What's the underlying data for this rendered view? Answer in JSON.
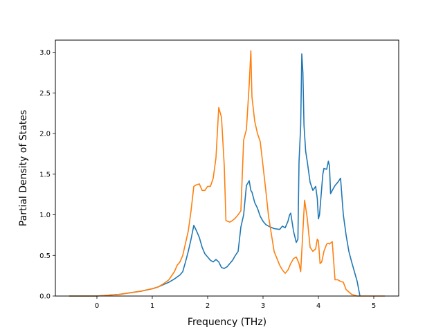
{
  "chart_data": {
    "type": "line",
    "title": "",
    "xlabel": "Frequency (THz)",
    "ylabel": "Partial Density of States",
    "xlim": [
      -0.75,
      5.45
    ],
    "ylim": [
      0,
      3.15
    ],
    "xticks": [
      0,
      1,
      2,
      3,
      4,
      5
    ],
    "xtick_labels": [
      "0",
      "1",
      "2",
      "3",
      "4",
      "5"
    ],
    "yticks": [
      0.0,
      0.5,
      1.0,
      1.5,
      2.0,
      2.5,
      3.0
    ],
    "ytick_labels": [
      "0.0",
      "0.5",
      "1.0",
      "1.5",
      "2.0",
      "2.5",
      "3.0"
    ],
    "grid": false,
    "legend": "none",
    "series": [
      {
        "color": "#1f77b4",
        "x": [
          -0.5,
          -0.2,
          0.0,
          0.2,
          0.4,
          0.6,
          0.8,
          1.0,
          1.1,
          1.2,
          1.3,
          1.4,
          1.5,
          1.55,
          1.6,
          1.65,
          1.7,
          1.75,
          1.8,
          1.85,
          1.9,
          1.95,
          2.0,
          2.05,
          2.1,
          2.15,
          2.2,
          2.25,
          2.3,
          2.35,
          2.4,
          2.45,
          2.5,
          2.55,
          2.6,
          2.65,
          2.7,
          2.75,
          2.78,
          2.8,
          2.85,
          2.9,
          2.95,
          3.0,
          3.05,
          3.1,
          3.2,
          3.3,
          3.35,
          3.4,
          3.45,
          3.48,
          3.5,
          3.55,
          3.6,
          3.63,
          3.65,
          3.68,
          3.7,
          3.72,
          3.74,
          3.77,
          3.8,
          3.85,
          3.9,
          3.95,
          3.98,
          4.0,
          4.02,
          4.05,
          4.08,
          4.1,
          4.15,
          4.18,
          4.2,
          4.22,
          4.25,
          4.3,
          4.35,
          4.4,
          4.45,
          4.5,
          4.55,
          4.6,
          4.65,
          4.7,
          4.75
        ],
        "y": [
          0.0,
          0.0,
          0.0,
          0.01,
          0.02,
          0.04,
          0.06,
          0.09,
          0.11,
          0.14,
          0.17,
          0.21,
          0.26,
          0.3,
          0.42,
          0.55,
          0.7,
          0.87,
          0.8,
          0.72,
          0.6,
          0.52,
          0.48,
          0.44,
          0.42,
          0.45,
          0.42,
          0.35,
          0.34,
          0.36,
          0.4,
          0.44,
          0.5,
          0.55,
          0.85,
          1.0,
          1.36,
          1.42,
          1.3,
          1.28,
          1.15,
          1.08,
          0.98,
          0.92,
          0.88,
          0.86,
          0.83,
          0.82,
          0.86,
          0.84,
          0.92,
          1.0,
          1.02,
          0.8,
          0.66,
          0.7,
          1.65,
          2.1,
          2.98,
          2.75,
          2.1,
          1.78,
          1.65,
          1.4,
          1.3,
          1.35,
          1.2,
          0.95,
          1.0,
          1.25,
          1.5,
          1.57,
          1.56,
          1.66,
          1.6,
          1.26,
          1.3,
          1.36,
          1.4,
          1.45,
          1.0,
          0.75,
          0.55,
          0.42,
          0.3,
          0.18,
          0.0
        ]
      },
      {
        "color": "#ff7f0e",
        "x": [
          -0.5,
          -0.2,
          0.0,
          0.2,
          0.4,
          0.6,
          0.8,
          1.0,
          1.1,
          1.2,
          1.3,
          1.4,
          1.45,
          1.5,
          1.55,
          1.6,
          1.65,
          1.7,
          1.75,
          1.8,
          1.85,
          1.9,
          1.95,
          2.0,
          2.05,
          2.1,
          2.15,
          2.2,
          2.25,
          2.3,
          2.33,
          2.36,
          2.4,
          2.45,
          2.5,
          2.55,
          2.6,
          2.65,
          2.7,
          2.75,
          2.78,
          2.8,
          2.85,
          2.9,
          2.95,
          3.0,
          3.05,
          3.1,
          3.2,
          3.3,
          3.35,
          3.4,
          3.45,
          3.5,
          3.55,
          3.6,
          3.65,
          3.68,
          3.72,
          3.75,
          3.8,
          3.85,
          3.9,
          3.95,
          3.98,
          4.0,
          4.03,
          4.06,
          4.1,
          4.15,
          4.18,
          4.2,
          4.25,
          4.3,
          4.35,
          4.4,
          4.45,
          4.5,
          4.6,
          4.7,
          4.8,
          5.0,
          5.2
        ],
        "y": [
          0.0,
          0.0,
          0.0,
          0.01,
          0.02,
          0.04,
          0.06,
          0.09,
          0.11,
          0.15,
          0.2,
          0.3,
          0.38,
          0.42,
          0.5,
          0.65,
          0.8,
          1.05,
          1.35,
          1.37,
          1.38,
          1.3,
          1.3,
          1.35,
          1.35,
          1.45,
          1.7,
          2.32,
          2.2,
          1.6,
          0.93,
          0.92,
          0.91,
          0.93,
          0.96,
          1.0,
          1.05,
          1.92,
          2.05,
          2.6,
          3.02,
          2.45,
          2.15,
          2.0,
          1.9,
          1.6,
          1.3,
          0.98,
          0.55,
          0.38,
          0.32,
          0.28,
          0.32,
          0.4,
          0.46,
          0.48,
          0.4,
          0.3,
          0.8,
          1.18,
          0.95,
          0.6,
          0.55,
          0.58,
          0.7,
          0.68,
          0.4,
          0.42,
          0.55,
          0.64,
          0.65,
          0.64,
          0.67,
          0.2,
          0.2,
          0.18,
          0.17,
          0.08,
          0.02,
          0.0,
          0.0,
          0.0,
          0.0
        ]
      }
    ]
  }
}
